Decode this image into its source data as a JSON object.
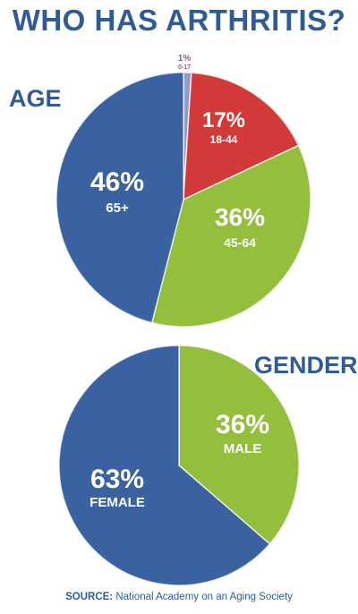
{
  "title": "WHO HAS ARTHRITIS?",
  "source": {
    "prefix": "SOURCE:",
    "text": "National Academy on an Aging Society"
  },
  "chart_data": [
    {
      "type": "pie",
      "title": "AGE",
      "slices": [
        {
          "category": "0-17",
          "value": 1,
          "label": "1%",
          "color": "#8e9ec8",
          "label_color": "#9a4f9a"
        },
        {
          "category": "18-44",
          "value": 17,
          "label": "17%",
          "color": "#d23a3a",
          "label_color": "#ffffff"
        },
        {
          "category": "45-64",
          "value": 36,
          "label": "36%",
          "color": "#93bf3d",
          "label_color": "#ffffff"
        },
        {
          "category": "65+",
          "value": 46,
          "label": "46%",
          "color": "#3b62a0",
          "label_color": "#ffffff"
        }
      ]
    },
    {
      "type": "pie",
      "title": "GENDER",
      "slices": [
        {
          "category": "MALE",
          "value": 36,
          "label": "36%",
          "color": "#93bf3d",
          "label_color": "#ffffff"
        },
        {
          "category": "FEMALE",
          "value": 63,
          "label": "63%",
          "color": "#3b62a0",
          "label_color": "#ffffff"
        }
      ]
    }
  ]
}
